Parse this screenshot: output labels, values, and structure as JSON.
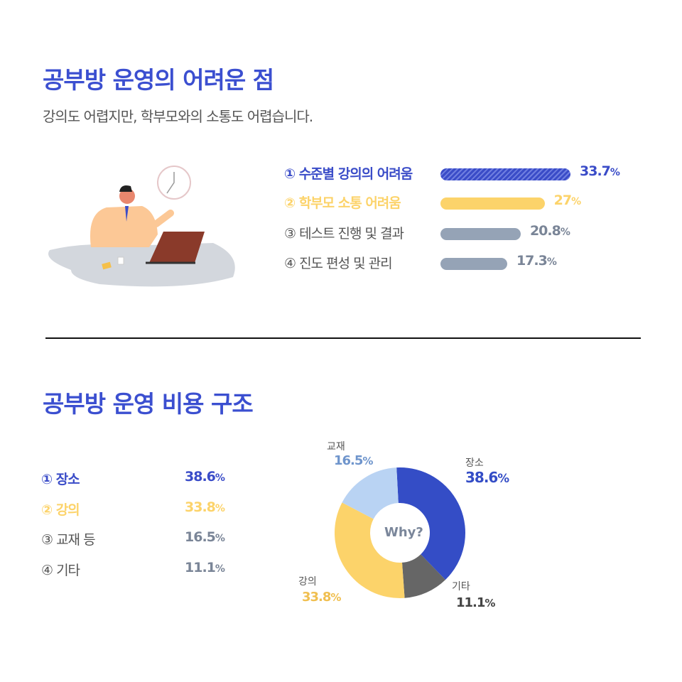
{
  "section1": {
    "title": "공부방 운영의 어려운 점",
    "subtitle": "강의도 어렵지만, 학부모와의 소통도 어렵습니다.",
    "items": [
      {
        "label": "① 수준별 강의의 어려움",
        "value": 33.7,
        "value_text": "33.7",
        "color": "#3a4cc8"
      },
      {
        "label": "② 학부모 소통 어려움",
        "value": 27,
        "value_text": "27",
        "color": "#fcd36a"
      },
      {
        "label": "③ 테스트 진행 및 결과",
        "value": 20.8,
        "value_text": "20.8",
        "color": "#95a3b6"
      },
      {
        "label": "④ 진도 편성 및 관리",
        "value": 17.3,
        "value_text": "17.3",
        "color": "#95a3b6"
      }
    ]
  },
  "section2": {
    "title": "공부방 운영 비용 구조",
    "legend": [
      {
        "label": "① 장소",
        "value_text": "38.6"
      },
      {
        "label": "② 강의",
        "value_text": "33.8"
      },
      {
        "label": "③ 교재 등",
        "value_text": "16.5"
      },
      {
        "label": "④ 기타",
        "value_text": "11.1"
      }
    ],
    "center": "Why?",
    "slices": [
      {
        "name": "장소",
        "value": 38.6,
        "value_text": "38.6",
        "color": "#344dc6"
      },
      {
        "name": "기타",
        "value": 11.1,
        "value_text": "11.1",
        "color": "#666666"
      },
      {
        "name": "강의",
        "value": 33.8,
        "value_text": "33.8",
        "color": "#fcd36a"
      },
      {
        "name": "교재",
        "value": 16.5,
        "value_text": "16.5",
        "color": "#b9d3f3"
      }
    ]
  },
  "percent": "%"
}
